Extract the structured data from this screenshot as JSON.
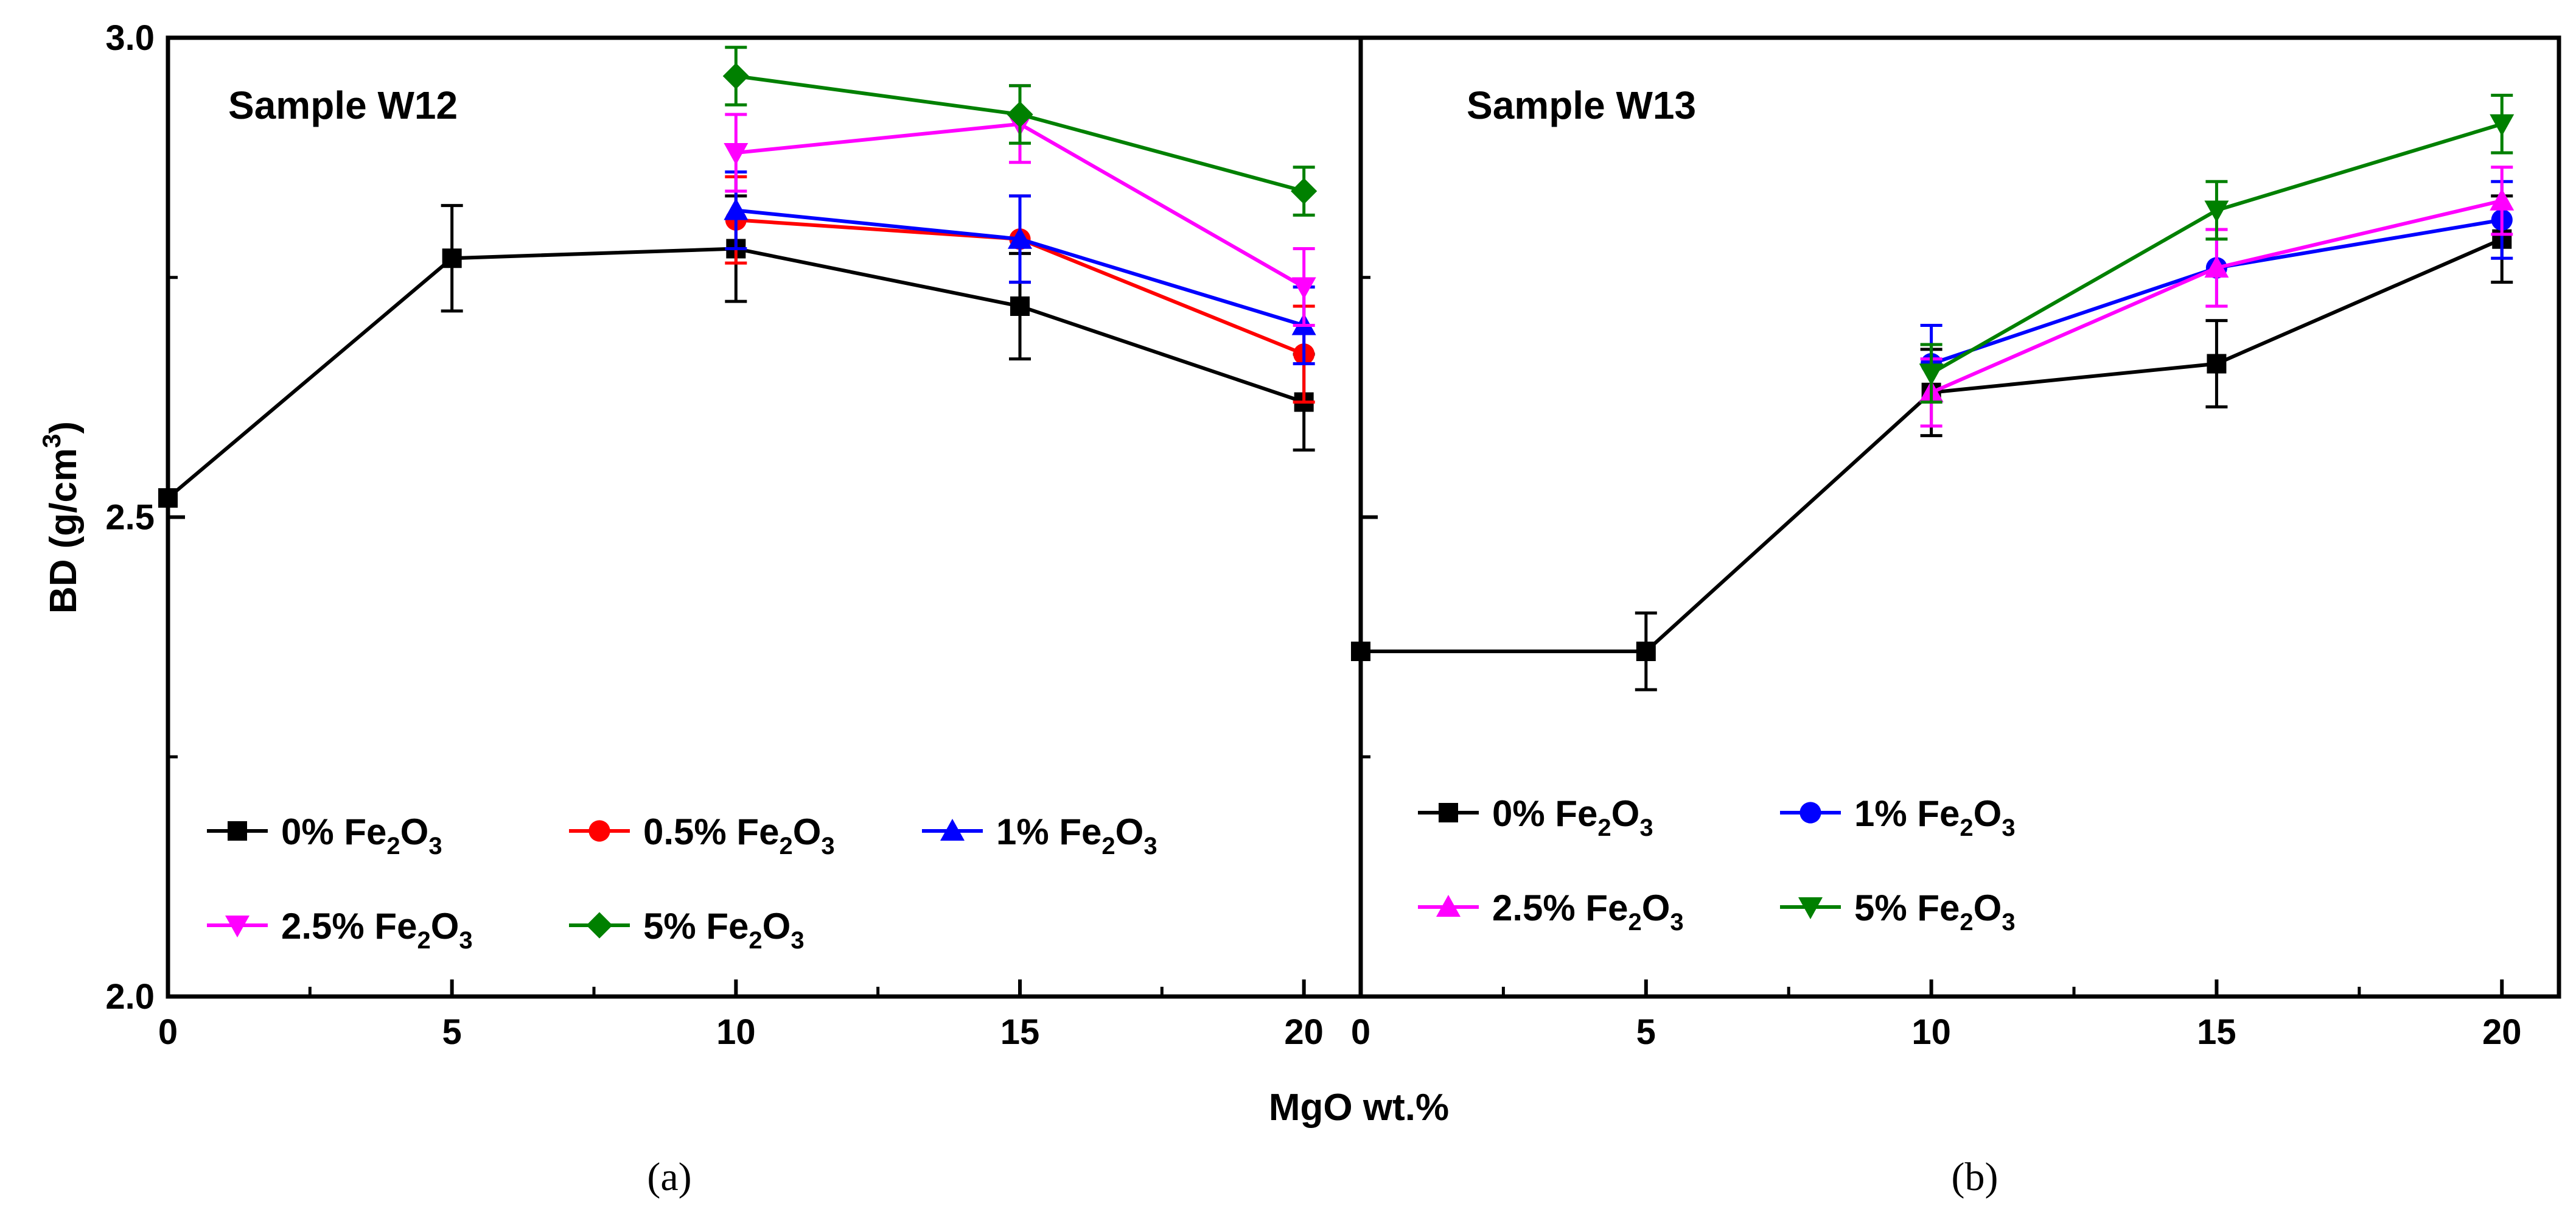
{
  "figure": {
    "shared_xlabel": "MgO wt.%",
    "ylabel_main": "BD (g/cm",
    "ylabel_sup": "3",
    "ylabel_tail": ")"
  },
  "chart_data": [
    {
      "type": "line",
      "panel_label": "(a)",
      "title": "Sample W12",
      "xlabel": "MgO wt.%",
      "ylabel": "BD (g/cm3)",
      "xlim": [
        0,
        21
      ],
      "ylim": [
        2.0,
        3.0
      ],
      "xticks": [
        "0",
        "5",
        "10",
        "15",
        "20"
      ],
      "yticks": [
        "2.0",
        "2.5",
        "3.0"
      ],
      "legend_position": "bottom-left",
      "series": [
        {
          "name": "0% Fe2O3",
          "main": "0% Fe",
          "sub": "2",
          "tail": "O",
          "sub2": "3",
          "color": "#000000",
          "marker": "square",
          "x": [
            0,
            5,
            10,
            15,
            20
          ],
          "y": [
            2.52,
            2.77,
            2.78,
            2.72,
            2.62
          ],
          "err": [
            0,
            0.055,
            0.055,
            0.055,
            0.05
          ]
        },
        {
          "name": "0.5% Fe2O3",
          "main": "0.5% Fe",
          "sub": "2",
          "tail": "O",
          "sub2": "3",
          "color": "#ff0000",
          "marker": "circle",
          "x": [
            10,
            15,
            20
          ],
          "y": [
            2.81,
            2.79,
            2.67
          ],
          "err": [
            0.045,
            0.045,
            0.05
          ]
        },
        {
          "name": "1% Fe2O3",
          "main": "1% Fe",
          "sub": "2",
          "tail": "O",
          "sub2": "3",
          "color": "#0000ff",
          "marker": "triangle-up",
          "x": [
            10,
            15,
            20
          ],
          "y": [
            2.82,
            2.79,
            2.7
          ],
          "err": [
            0.04,
            0.045,
            0.04
          ]
        },
        {
          "name": "2.5% Fe2O3",
          "main": "2.5% Fe",
          "sub": "2",
          "tail": "O",
          "sub2": "3",
          "color": "#ff00ff",
          "marker": "triangle-down",
          "x": [
            10,
            15,
            20
          ],
          "y": [
            2.88,
            2.91,
            2.74
          ],
          "err": [
            0.04,
            0.04,
            0.04
          ]
        },
        {
          "name": "5% Fe2O3",
          "main": "5% Fe",
          "sub": "2",
          "tail": "O",
          "sub2": "3",
          "color": "#008000",
          "marker": "diamond",
          "x": [
            10,
            15,
            20
          ],
          "y": [
            2.96,
            2.92,
            2.84
          ],
          "err": [
            0.03,
            0.03,
            0.025
          ]
        }
      ]
    },
    {
      "type": "line",
      "panel_label": "(b)",
      "title": "Sample W13",
      "xlabel": "MgO wt.%",
      "ylabel": "BD (g/cm3)",
      "xlim": [
        0,
        21
      ],
      "ylim": [
        2.0,
        3.0
      ],
      "xticks": [
        "0",
        "5",
        "10",
        "15",
        "20"
      ],
      "yticks": [
        "2.0",
        "2.5",
        "3.0"
      ],
      "legend_position": "bottom-left",
      "series": [
        {
          "name": "0% Fe2O3",
          "main": "0% Fe",
          "sub": "2",
          "tail": "O",
          "sub2": "3",
          "color": "#000000",
          "marker": "square",
          "x": [
            0,
            5,
            10,
            15,
            20
          ],
          "y": [
            2.36,
            2.36,
            2.63,
            2.66,
            2.79
          ],
          "err": [
            0,
            0.04,
            0.045,
            0.045,
            0.045
          ]
        },
        {
          "name": "1% Fe2O3",
          "main": "1% Fe",
          "sub": "2",
          "tail": "O",
          "sub2": "3",
          "color": "#0000ff",
          "marker": "circle",
          "x": [
            10,
            15,
            20
          ],
          "y": [
            2.66,
            2.76,
            2.81
          ],
          "err": [
            0.04,
            0.04,
            0.04
          ]
        },
        {
          "name": "2.5% Fe2O3",
          "main": "2.5% Fe",
          "sub": "2",
          "tail": "O",
          "sub2": "3",
          "color": "#ff00ff",
          "marker": "triangle-up",
          "x": [
            10,
            15,
            20
          ],
          "y": [
            2.63,
            2.76,
            2.83
          ],
          "err": [
            0.035,
            0.04,
            0.035
          ]
        },
        {
          "name": "5% Fe2O3",
          "main": "5% Fe",
          "sub": "2",
          "tail": "O",
          "sub2": "3",
          "color": "#008000",
          "marker": "triangle-down",
          "x": [
            10,
            15,
            20
          ],
          "y": [
            2.65,
            2.82,
            2.91
          ],
          "err": [
            0.03,
            0.03,
            0.03
          ]
        }
      ]
    }
  ]
}
